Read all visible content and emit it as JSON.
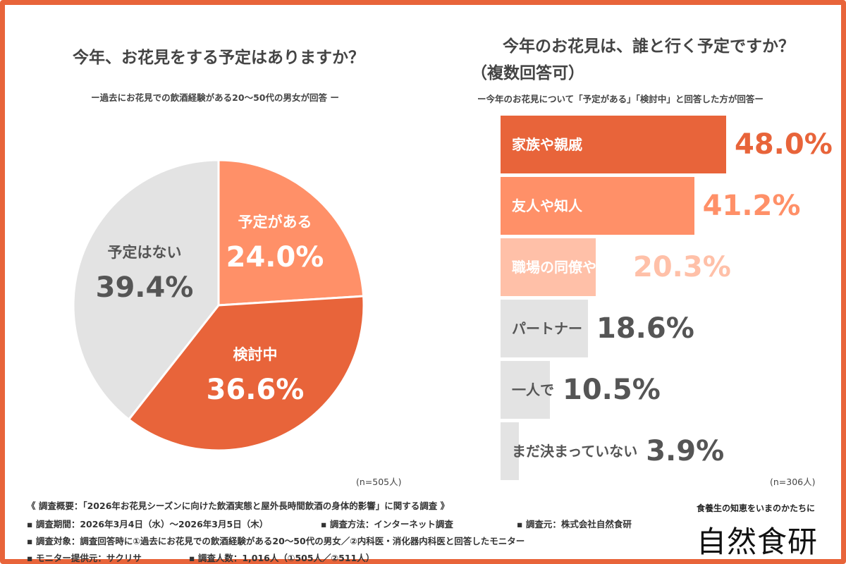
{
  "left": {
    "title": "今年、お花見をする予定はありますか？",
    "subtitle": "ー過去にお花見での飲酒経験がある20〜50代の男女が回答 ー",
    "n": "(n=505人)"
  },
  "right": {
    "title_line1": "今年のお花見は、誰と行く予定ですか？",
    "title_line2": "（複数回答可）",
    "subtitle": "ー今年のお花見について「予定がある」「検討中」と回答した方が回答ー",
    "n": "(n=306人)"
  },
  "chart_data": [
    {
      "type": "pie",
      "title": "今年、お花見をする予定はありますか？",
      "slices": [
        {
          "label": "予定がある",
          "value": 24.0,
          "display": "24.0%",
          "color": "#ff9068"
        },
        {
          "label": "検討中",
          "value": 36.6,
          "display": "36.6%",
          "color": "#e8643a"
        },
        {
          "label": "予定はない",
          "value": 39.4,
          "display": "39.4%",
          "color": "#e3e3e3"
        }
      ],
      "start": "12 o'clock, clockwise"
    },
    {
      "type": "bar",
      "orientation": "horizontal",
      "title": "今年のお花見は、誰と行く予定ですか？（複数回答可）",
      "categories": [
        "家族や親戚",
        "友人や知人",
        "職場の同僚や上司",
        "パートナー",
        "一人で",
        "まだ決まっていない"
      ],
      "values": [
        48.0,
        41.2,
        20.3,
        18.6,
        10.5,
        3.9
      ],
      "display": [
        "48.0%",
        "41.2%",
        "20.3%",
        "18.6%",
        "10.5%",
        "3.9%"
      ],
      "colors": [
        "#e8643a",
        "#ff9068",
        "#ffc0a8",
        "#e3e3e3",
        "#e3e3e3",
        "#e3e3e3"
      ],
      "label_colors": [
        "#ffffff",
        "#ffffff",
        "#ffffff",
        "#555555",
        "#555555",
        "#555555"
      ],
      "value_colors": [
        "#e8643a",
        "#ff9068",
        "#ffc0a8",
        "#555555",
        "#555555",
        "#555555"
      ],
      "xlim": [
        0,
        48
      ]
    }
  ],
  "footer": {
    "line1": "《 調査概要：「2026年お花見シーズンに向けた飲酒実態と屋外長時間飲酒の身体的影響」に関する調査 》",
    "period": "▪ 調査期間：2026年3月4日（水）〜2026年3月5日（木）",
    "method": "▪ 調査方法：インターネット調査",
    "source": "▪ 調査元：株式会社自然食研",
    "target": "▪ 調査対象：調査回答時に①過去にお花見での飲酒経験がある20〜50代の男女／②内科医・消化器内科医と回答したモニター",
    "provider": "▪ モニター提供元：サクリサ",
    "count": "▪ 調査人数：1,016人（①505人／②511人）"
  },
  "logo": {
    "tagline": "食養生の知恵をいまのかたちに",
    "name": "自然食研"
  }
}
